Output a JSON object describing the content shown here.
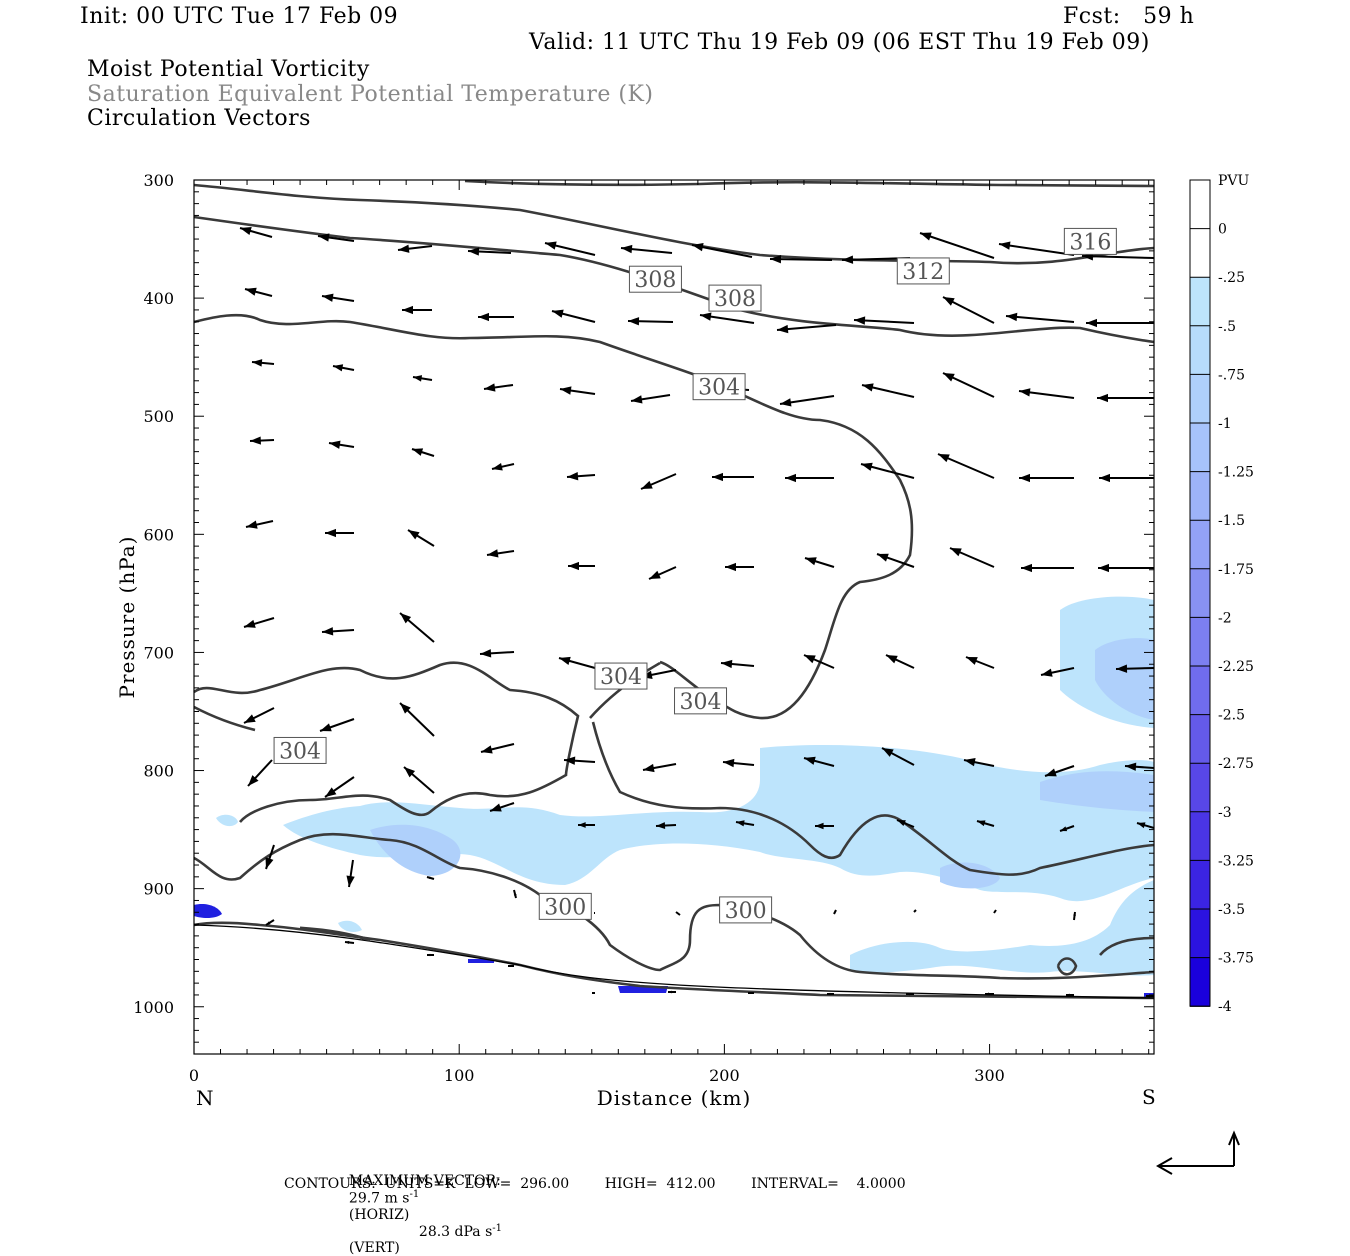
{
  "header": {
    "init": "Init: 00 UTC Tue 17 Feb 09",
    "fcst": "Fcst:   59 h",
    "valid": "Valid: 11 UTC Thu 19 Feb 09 (06 EST Thu 19 Feb 09)",
    "field1": "Moist Potential Vorticity",
    "field2": "Saturation Equivalent Potential Temperature (K)",
    "field3": "Circulation Vectors"
  },
  "footer": {
    "max_vector_label": "MAXIMUM VECTOR:",
    "max_horiz": "29.7 m s",
    "horiz_tag": "(HORIZ)",
    "max_vert": "28.3 dPa s",
    "vert_tag": "(VERT)",
    "exponent": "-1",
    "contours": "CONTOURS:  UNITS=K  LOW=  296.00        HIGH=  412.00        INTERVAL=    4.0000"
  },
  "chart_data": {
    "type": "heatmap",
    "xlabel": "Distance (km)",
    "ylabel": "Pressure (hPa)",
    "x_ticks": [
      0,
      100,
      200,
      300
    ],
    "x_end_labels": {
      "left": "N",
      "right": "S"
    },
    "xlim": [
      0,
      362
    ],
    "y_ticks": [
      300,
      400,
      500,
      600,
      700,
      800,
      900,
      1000
    ],
    "ylim": [
      1040,
      300
    ],
    "contour_labels": [
      {
        "text": "316",
        "x": 338,
        "p": 352
      },
      {
        "text": "312",
        "x": 275,
        "p": 377
      },
      {
        "text": "308",
        "x": 174,
        "p": 384
      },
      {
        "text": "308",
        "x": 204,
        "p": 400
      },
      {
        "text": "304",
        "x": 198,
        "p": 475
      },
      {
        "text": "304",
        "x": 161,
        "p": 720
      },
      {
        "text": "304",
        "x": 191,
        "p": 741
      },
      {
        "text": "304",
        "x": 40,
        "p": 783
      },
      {
        "text": "300",
        "x": 140,
        "p": 915
      },
      {
        "text": "300",
        "x": 208,
        "p": 918
      }
    ],
    "colorbar": {
      "unit": "PVU",
      "labels": [
        "0",
        "-.25",
        "-.5",
        "-.75",
        "-1",
        "-1.25",
        "-1.5",
        "-1.75",
        "-2",
        "-2.25",
        "-2.5",
        "-2.75",
        "-3",
        "-3.25",
        "-3.5",
        "-3.75",
        "-4"
      ],
      "colors": [
        "#ffffff",
        "#ffffff",
        "#bde4fc",
        "#b7dcfc",
        "#afd0fb",
        "#a7c3fb",
        "#9db3f8",
        "#93a2f6",
        "#8891f3",
        "#7c7ff1",
        "#706cee",
        "#645aea",
        "#5847e8",
        "#4a35e5",
        "#3b24e2",
        "#2b13df",
        "#1a00dc"
      ]
    }
  }
}
